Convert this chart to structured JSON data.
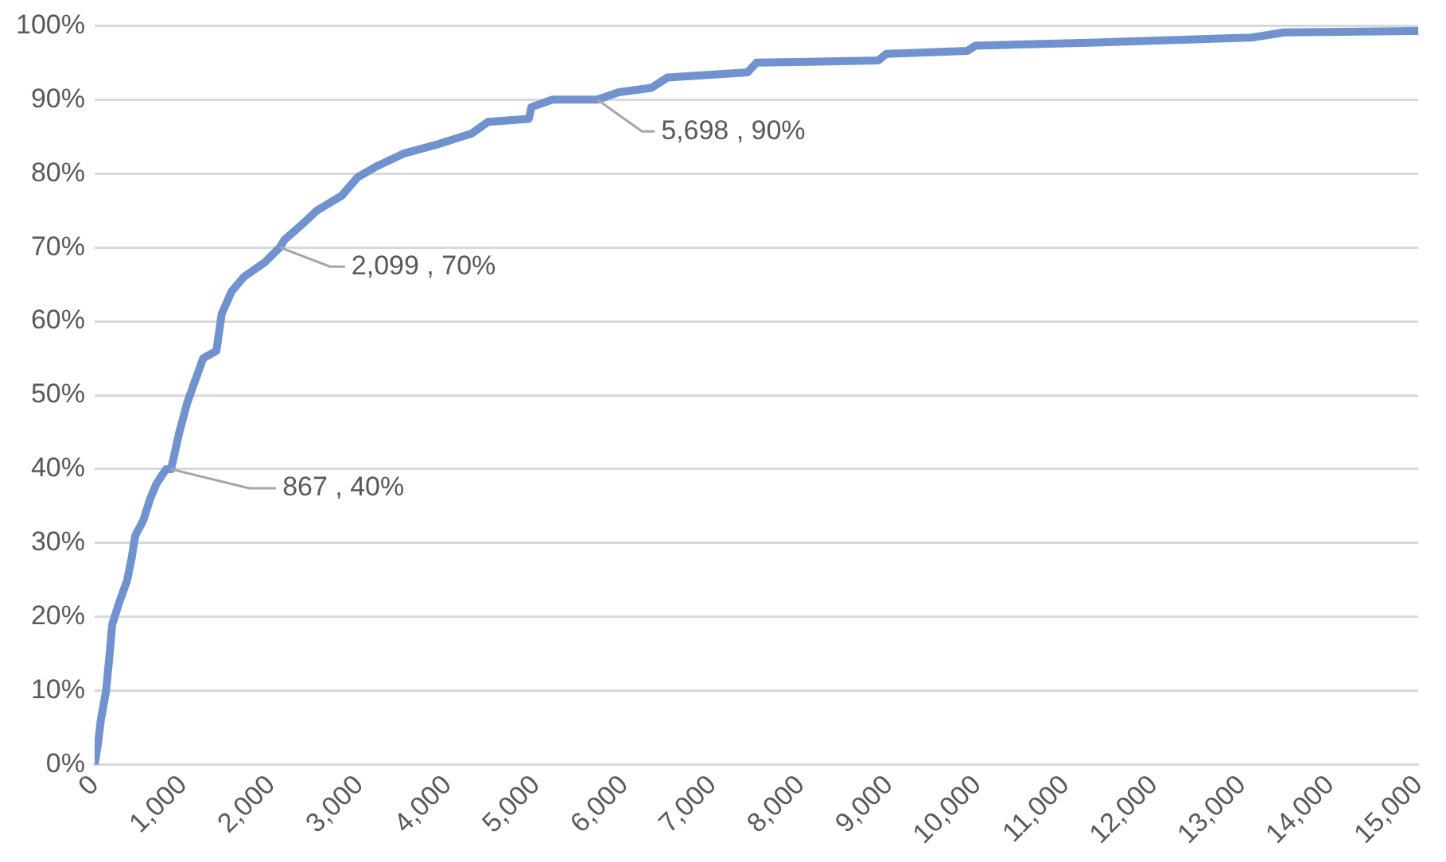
{
  "chart_data": {
    "type": "line",
    "xlim": [
      0,
      15000
    ],
    "xticks": [
      0,
      {
        "value": 1000,
        "label": "1,000"
      },
      {
        "value": 2000,
        "label": "2,000"
      },
      {
        "value": 3000,
        "label": "3,000"
      },
      {
        "value": 4000,
        "label": "4,000"
      },
      {
        "value": 5000,
        "label": "5,000"
      },
      {
        "value": 6000,
        "label": "6,000"
      },
      {
        "value": 7000,
        "label": "7,000"
      },
      {
        "value": 8000,
        "label": "8,000"
      },
      {
        "value": 9000,
        "label": "9,000"
      },
      {
        "value": 10000,
        "label": "10,000"
      },
      {
        "value": 11000,
        "label": "11,000"
      },
      {
        "value": 12000,
        "label": "12,000"
      },
      {
        "value": 13000,
        "label": "13,000"
      },
      {
        "value": 14000,
        "label": "14,000"
      },
      {
        "value": 15000,
        "label": "15,000"
      }
    ],
    "ylim": [
      0,
      100
    ],
    "yticks": [
      {
        "value": 0,
        "label": "0%"
      },
      {
        "value": 10,
        "label": "10%"
      },
      {
        "value": 20,
        "label": "20%"
      },
      {
        "value": 30,
        "label": "30%"
      },
      {
        "value": 40,
        "label": "40%"
      },
      {
        "value": 50,
        "label": "50%"
      },
      {
        "value": 60,
        "label": "60%"
      },
      {
        "value": 70,
        "label": "70%"
      },
      {
        "value": 80,
        "label": "80%"
      },
      {
        "value": 90,
        "label": "90%"
      },
      {
        "value": 100,
        "label": "100%"
      }
    ],
    "grid": "y",
    "legend": false,
    "marker": "none",
    "line_style": "solid",
    "series": [
      {
        "color": "#7092cf",
        "x": [
          0,
          40,
          70,
          130,
          170,
          200,
          280,
          370,
          420,
          460,
          550,
          630,
          700,
          810,
          867,
          960,
          1050,
          1140,
          1230,
          1380,
          1440,
          1550,
          1690,
          1930,
          2099,
          2150,
          2340,
          2520,
          2800,
          2980,
          3200,
          3500,
          3900,
          4270,
          4460,
          4920,
          4950,
          5190,
          5698,
          5940,
          6310,
          6490,
          7400,
          7500,
          8880,
          8970,
          9890,
          9980,
          11270,
          13110,
          13480,
          15000
        ],
        "values": [
          0,
          3,
          6,
          10,
          15,
          19,
          22,
          25,
          28,
          31,
          33,
          36,
          38,
          40,
          40,
          45,
          49,
          52,
          55,
          56,
          61,
          64,
          66,
          68,
          70,
          71,
          73,
          75,
          77,
          79.5,
          81,
          82.7,
          84,
          85.4,
          87,
          87.4,
          89,
          90,
          90,
          91,
          91.6,
          93,
          93.7,
          95,
          95.3,
          96.2,
          96.6,
          97.3,
          97.7,
          98.4,
          99.1,
          99.3
        ]
      }
    ],
    "annotations": [
      {
        "text": "867 , 40%",
        "x": 867,
        "y": 40
      },
      {
        "text": "2,099 , 70%",
        "x": 2099,
        "y": 70
      },
      {
        "text": "5,698 , 90%",
        "x": 5698,
        "y": 90
      }
    ]
  }
}
